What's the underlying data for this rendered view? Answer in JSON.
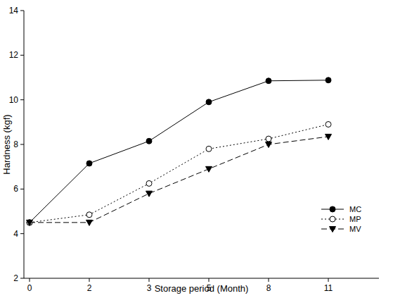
{
  "chart_data": {
    "type": "line",
    "x_label": "Storage period (Month)",
    "y_label": "Hardness (kgf)",
    "categories": [
      "0",
      "2",
      "3",
      "5",
      "8",
      "11"
    ],
    "series": [
      {
        "name": "MC",
        "color": "#000000",
        "marker": "circle",
        "line_style": "solid",
        "values": [
          4.5,
          7.15,
          8.15,
          9.9,
          10.85,
          10.88
        ]
      },
      {
        "name": "MP",
        "color": "#000000",
        "marker": "open-circle",
        "line_style": "dotted",
        "values": [
          4.5,
          4.85,
          6.25,
          7.8,
          8.25,
          8.9
        ]
      },
      {
        "name": "MV",
        "color": "#000000",
        "marker": "triangle-down",
        "line_style": "dashed",
        "values": [
          4.5,
          4.5,
          5.8,
          6.9,
          8.0,
          8.35
        ]
      }
    ],
    "ylim": [
      2,
      14
    ],
    "yticks": [
      2,
      4,
      6,
      8,
      10,
      12,
      14
    ],
    "grid": false,
    "legend": "bottom-right"
  }
}
